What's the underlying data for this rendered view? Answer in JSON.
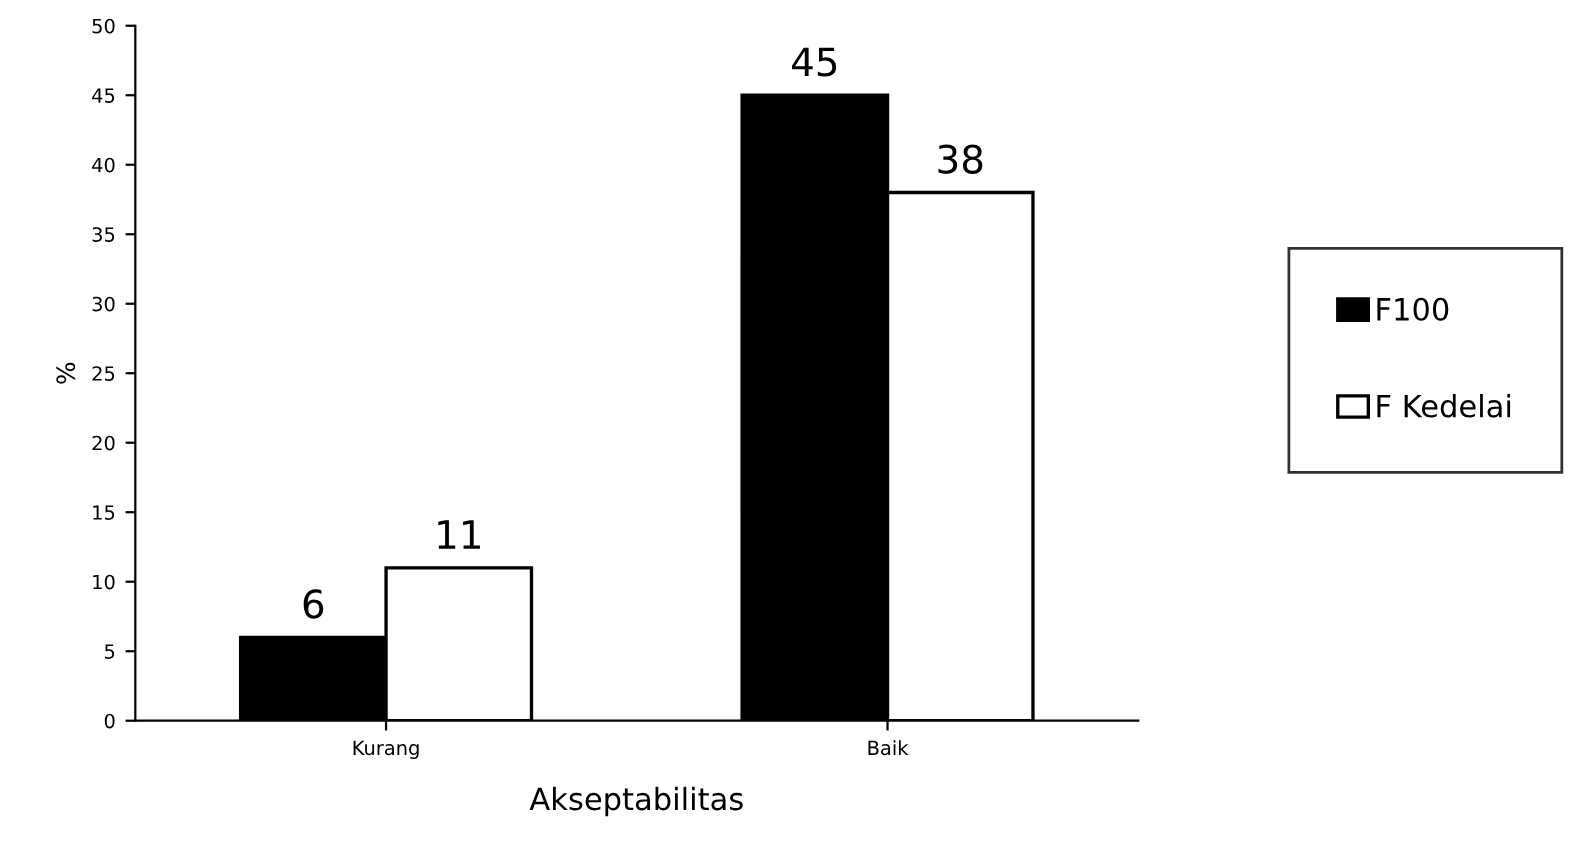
{
  "chart_data": {
    "type": "bar",
    "xlabel": "Akseptabilitas",
    "ylabel": "%",
    "categories": [
      "Kurang",
      "Baik"
    ],
    "series": [
      {
        "name": "F100",
        "color": "#000000",
        "values": [
          6,
          45
        ]
      },
      {
        "name": "F Kedelai",
        "color": "#ffffff",
        "values": [
          11,
          38
        ]
      }
    ],
    "ylim": [
      0,
      50
    ],
    "yticks": [
      0,
      5,
      10,
      15,
      20,
      25,
      30,
      35,
      40,
      45,
      50
    ],
    "data_labels": true,
    "grid": false,
    "legend": "right"
  }
}
